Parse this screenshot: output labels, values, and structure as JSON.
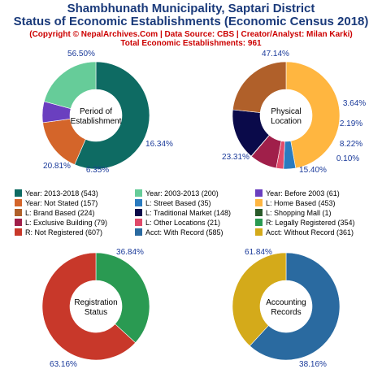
{
  "header": {
    "title_line1": "Shambhunath Municipality, Saptari District",
    "title_line2": "Status of Economic Establishments (Economic Census 2018)",
    "subtitle": "(Copyright © NepalArchives.Com | Data Source: CBS | Creator/Analyst: Milan Karki)",
    "total": "Total Economic Establishments: 961"
  },
  "chart_data": [
    {
      "type": "pie",
      "center_label": [
        "Period of",
        "Establishment"
      ],
      "slices": [
        {
          "label": "Year: 2013-2018",
          "value": 543,
          "pct": "56.50%",
          "color": "#0e6b63"
        },
        {
          "label": "Year: Not Stated",
          "value": 157,
          "pct": "16.34%",
          "color": "#d4652a"
        },
        {
          "label": "Year: Before 2003",
          "value": 61,
          "pct": "6.35%",
          "color": "#6a3fbf"
        },
        {
          "label": "Year: 2003-2013",
          "value": 200,
          "pct": "20.81%",
          "color": "#66cc99"
        }
      ]
    },
    {
      "type": "pie",
      "center_label": [
        "Physical",
        "Location"
      ],
      "slices": [
        {
          "label": "L: Home Based",
          "value": 453,
          "pct": "47.14%",
          "color": "#ffb640"
        },
        {
          "label": "L: Street Based",
          "value": 35,
          "pct": "3.64%",
          "color": "#2a7bc0"
        },
        {
          "label": "L: Other Locations",
          "value": 21,
          "pct": "2.19%",
          "color": "#e04a6a"
        },
        {
          "label": "L: Exclusive Building",
          "value": 79,
          "pct": "8.22%",
          "color": "#a01f4a"
        },
        {
          "label": "L: Shopping Mall",
          "value": 1,
          "pct": "0.10%",
          "color": "#2a5a2a"
        },
        {
          "label": "L: Traditional Market",
          "value": 148,
          "pct": "15.40%",
          "color": "#0a0a4a"
        },
        {
          "label": "L: Brand Based",
          "value": 224,
          "pct": "23.31%",
          "color": "#b0602a"
        }
      ]
    },
    {
      "type": "pie",
      "center_label": [
        "Registration",
        "Status"
      ],
      "slices": [
        {
          "label": "R: Legally Registered",
          "value": 354,
          "pct": "36.84%",
          "color": "#2a9a52"
        },
        {
          "label": "R: Not Registered",
          "value": 607,
          "pct": "63.16%",
          "color": "#c8382a"
        }
      ]
    },
    {
      "type": "pie",
      "center_label": [
        "Accounting",
        "Records"
      ],
      "slices": [
        {
          "label": "Acct: With Record",
          "value": 585,
          "pct": "61.84%",
          "color": "#2a6aa0"
        },
        {
          "label": "Acct: Without Record",
          "value": 361,
          "pct": "38.16%",
          "color": "#d4aa1a"
        }
      ]
    }
  ],
  "legend": [
    {
      "text": "Year: 2013-2018 (543)",
      "color": "#0e6b63"
    },
    {
      "text": "Year: 2003-2013 (200)",
      "color": "#66cc99"
    },
    {
      "text": "Year: Before 2003 (61)",
      "color": "#6a3fbf"
    },
    {
      "text": "Year: Not Stated (157)",
      "color": "#d4652a"
    },
    {
      "text": "L: Street Based (35)",
      "color": "#2a7bc0"
    },
    {
      "text": "L: Home Based (453)",
      "color": "#ffb640"
    },
    {
      "text": "L: Brand Based (224)",
      "color": "#b0602a"
    },
    {
      "text": "L: Traditional Market (148)",
      "color": "#0a0a4a"
    },
    {
      "text": "L: Shopping Mall (1)",
      "color": "#2a5a2a"
    },
    {
      "text": "L: Exclusive Building (79)",
      "color": "#a01f4a"
    },
    {
      "text": "L: Other Locations (21)",
      "color": "#e04a6a"
    },
    {
      "text": "R: Legally Registered (354)",
      "color": "#2a9a52"
    },
    {
      "text": "R: Not Registered (607)",
      "color": "#c8382a"
    },
    {
      "text": "Acct: With Record (585)",
      "color": "#2a6aa0"
    },
    {
      "text": "Acct: Without Record (361)",
      "color": "#d4aa1a"
    }
  ]
}
